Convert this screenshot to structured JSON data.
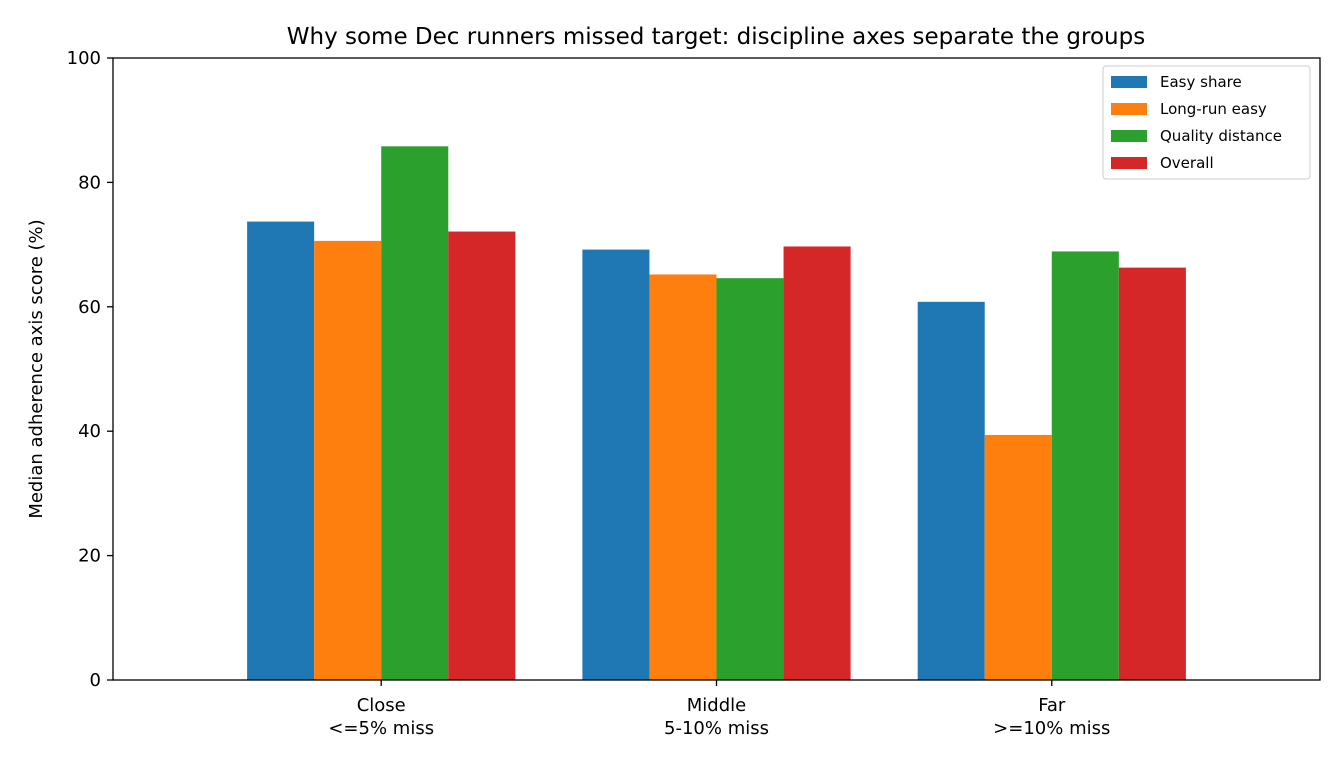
{
  "chart_data": {
    "type": "bar",
    "title": "Why some Dec runners missed target: discipline axes separate the groups",
    "xlabel": "",
    "ylabel": "Median adherence axis score (%)",
    "ylim": [
      0,
      100
    ],
    "yticks": [
      0,
      20,
      40,
      60,
      80,
      100
    ],
    "grid": false,
    "legend_position": "top-right",
    "categories": [
      {
        "line1": "Close",
        "line2": "<=5% miss"
      },
      {
        "line1": "Middle",
        "line2": "5-10% miss"
      },
      {
        "line1": "Far",
        "line2": ">=10% miss"
      }
    ],
    "series": [
      {
        "name": "Easy share",
        "color": "#1f77b4",
        "values": [
          73.7,
          69.2,
          60.8
        ]
      },
      {
        "name": "Long-run easy",
        "color": "#ff7f0e",
        "values": [
          70.6,
          65.2,
          39.4
        ]
      },
      {
        "name": "Quality distance",
        "color": "#2ca02c",
        "values": [
          85.8,
          64.6,
          68.9
        ]
      },
      {
        "name": "Overall",
        "color": "#d62728",
        "values": [
          72.1,
          69.7,
          66.3
        ]
      }
    ]
  }
}
